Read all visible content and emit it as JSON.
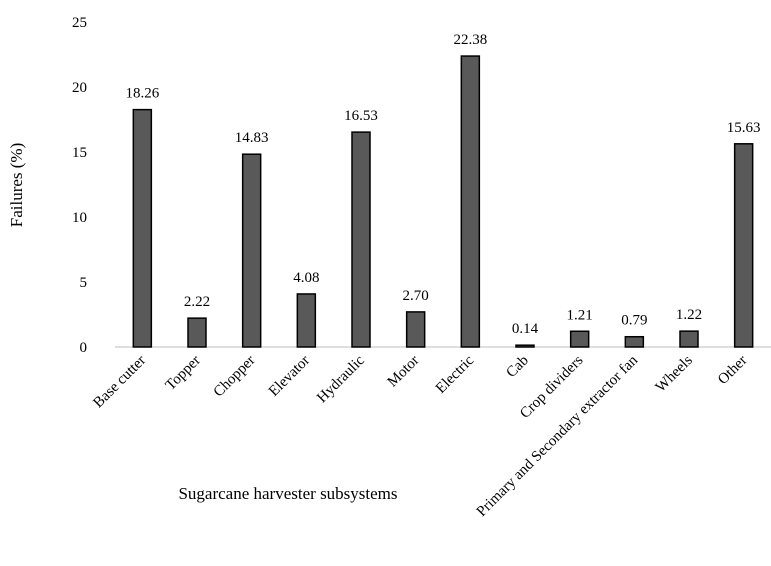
{
  "chart_data": {
    "type": "bar",
    "title": "",
    "xlabel": "Sugarcane harvester subsystems",
    "ylabel": "Failures (%)",
    "ylim": [
      0,
      25
    ],
    "yticks": [
      0,
      5,
      10,
      15,
      20,
      25
    ],
    "grid": false,
    "legend": "none",
    "bar_color": "#595959",
    "bar_stroke": "#000000",
    "categories": [
      "Base cutter",
      "Topper",
      "Chopper",
      "Elevator",
      "Hydraulic",
      "Motor",
      "Electric",
      "Cab",
      "Crop dividers",
      "Primary and Secondary extractor fan",
      "Wheels",
      "Other"
    ],
    "values": [
      18.26,
      2.22,
      14.83,
      4.08,
      16.53,
      2.7,
      22.38,
      0.14,
      1.21,
      0.79,
      1.22,
      15.63
    ],
    "value_labels": [
      "18.26",
      "2.22",
      "14.83",
      "4.08",
      "16.53",
      "2.70",
      "22.38",
      "0.14",
      "1.21",
      "0.79",
      "1.22",
      "15.63"
    ]
  }
}
